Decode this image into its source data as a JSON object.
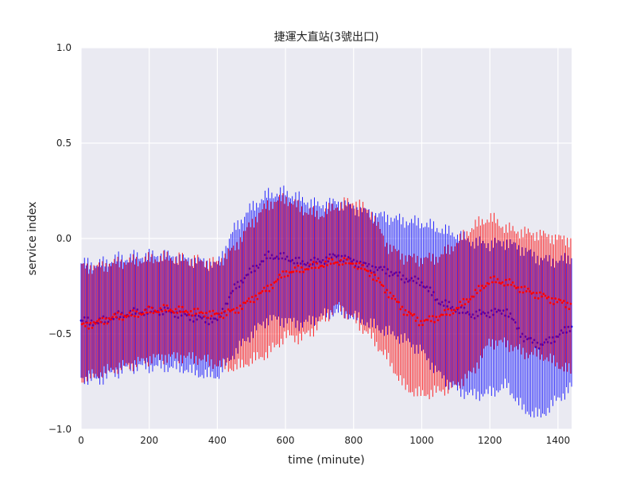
{
  "chart_data": {
    "type": "line",
    "title": "捷運大直站(3號出口)",
    "xlabel": "time (minute)",
    "ylabel": "service index",
    "xlim": [
      0,
      1440
    ],
    "ylim": [
      -1.0,
      1.0
    ],
    "x_ticks": [
      0,
      200,
      400,
      600,
      800,
      1000,
      1200,
      1400
    ],
    "y_ticks": [
      -1.0,
      -0.5,
      0.0,
      0.5,
      1.0
    ],
    "x_tick_labels": [
      "0",
      "200",
      "400",
      "600",
      "800",
      "1000",
      "1200",
      "1400"
    ],
    "y_tick_labels": [
      "−1.0",
      "−0.5",
      "0.0",
      "0.5",
      "1.0"
    ],
    "grid": true,
    "background": "#eaeaf2",
    "colors": {
      "series_a": "#0000ff",
      "series_b": "#ff0000"
    },
    "series": [
      {
        "style": "errorbar",
        "color": "#0000ff",
        "x": [
          0,
          50,
          100,
          150,
          200,
          250,
          300,
          350,
          400,
          450,
          500,
          550,
          600,
          650,
          700,
          750,
          800,
          850,
          900,
          950,
          1000,
          1050,
          1100,
          1150,
          1200,
          1250,
          1300,
          1350,
          1400,
          1440
        ],
        "mean": [
          -0.43,
          -0.44,
          -0.41,
          -0.39,
          -0.38,
          -0.38,
          -0.4,
          -0.42,
          -0.43,
          -0.26,
          -0.17,
          -0.09,
          -0.1,
          -0.13,
          -0.12,
          -0.09,
          -0.12,
          -0.15,
          -0.17,
          -0.21,
          -0.23,
          -0.33,
          -0.37,
          -0.4,
          -0.39,
          -0.38,
          -0.52,
          -0.56,
          -0.51,
          -0.46
        ],
        "upper": [
          -0.13,
          -0.14,
          -0.11,
          -0.1,
          -0.09,
          -0.09,
          -0.11,
          -0.12,
          -0.14,
          0.05,
          0.16,
          0.23,
          0.24,
          0.2,
          0.17,
          0.19,
          0.16,
          0.13,
          0.11,
          0.09,
          0.08,
          0.05,
          0.02,
          -0.02,
          -0.03,
          -0.02,
          -0.06,
          -0.11,
          -0.12,
          -0.1
        ],
        "lower": [
          -0.73,
          -0.74,
          -0.7,
          -0.67,
          -0.67,
          -0.67,
          -0.68,
          -0.71,
          -0.72,
          -0.6,
          -0.5,
          -0.42,
          -0.43,
          -0.45,
          -0.41,
          -0.38,
          -0.41,
          -0.45,
          -0.49,
          -0.53,
          -0.59,
          -0.71,
          -0.79,
          -0.82,
          -0.81,
          -0.77,
          -0.9,
          -0.93,
          -0.84,
          -0.78
        ]
      },
      {
        "style": "errorbar",
        "color": "#ff0000",
        "x": [
          0,
          50,
          100,
          150,
          200,
          250,
          300,
          350,
          400,
          450,
          500,
          550,
          600,
          650,
          700,
          750,
          800,
          850,
          900,
          950,
          1000,
          1050,
          1100,
          1150,
          1200,
          1250,
          1300,
          1350,
          1400,
          1440
        ],
        "mean": [
          -0.46,
          -0.44,
          -0.41,
          -0.4,
          -0.38,
          -0.37,
          -0.38,
          -0.39,
          -0.4,
          -0.38,
          -0.32,
          -0.26,
          -0.18,
          -0.16,
          -0.14,
          -0.12,
          -0.13,
          -0.18,
          -0.28,
          -0.38,
          -0.44,
          -0.41,
          -0.37,
          -0.3,
          -0.22,
          -0.23,
          -0.27,
          -0.3,
          -0.33,
          -0.35
        ],
        "upper": [
          -0.15,
          -0.15,
          -0.13,
          -0.12,
          -0.11,
          -0.1,
          -0.11,
          -0.12,
          -0.13,
          -0.05,
          0.08,
          0.18,
          0.21,
          0.15,
          0.12,
          0.17,
          0.19,
          0.14,
          -0.04,
          -0.1,
          -0.11,
          -0.1,
          -0.03,
          0.06,
          0.11,
          0.05,
          0.03,
          0.02,
          0.0,
          -0.01
        ],
        "lower": [
          -0.74,
          -0.71,
          -0.68,
          -0.66,
          -0.63,
          -0.62,
          -0.62,
          -0.63,
          -0.66,
          -0.68,
          -0.64,
          -0.6,
          -0.51,
          -0.52,
          -0.45,
          -0.35,
          -0.42,
          -0.51,
          -0.63,
          -0.78,
          -0.82,
          -0.8,
          -0.77,
          -0.7,
          -0.54,
          -0.55,
          -0.6,
          -0.61,
          -0.66,
          -0.7
        ]
      }
    ]
  }
}
